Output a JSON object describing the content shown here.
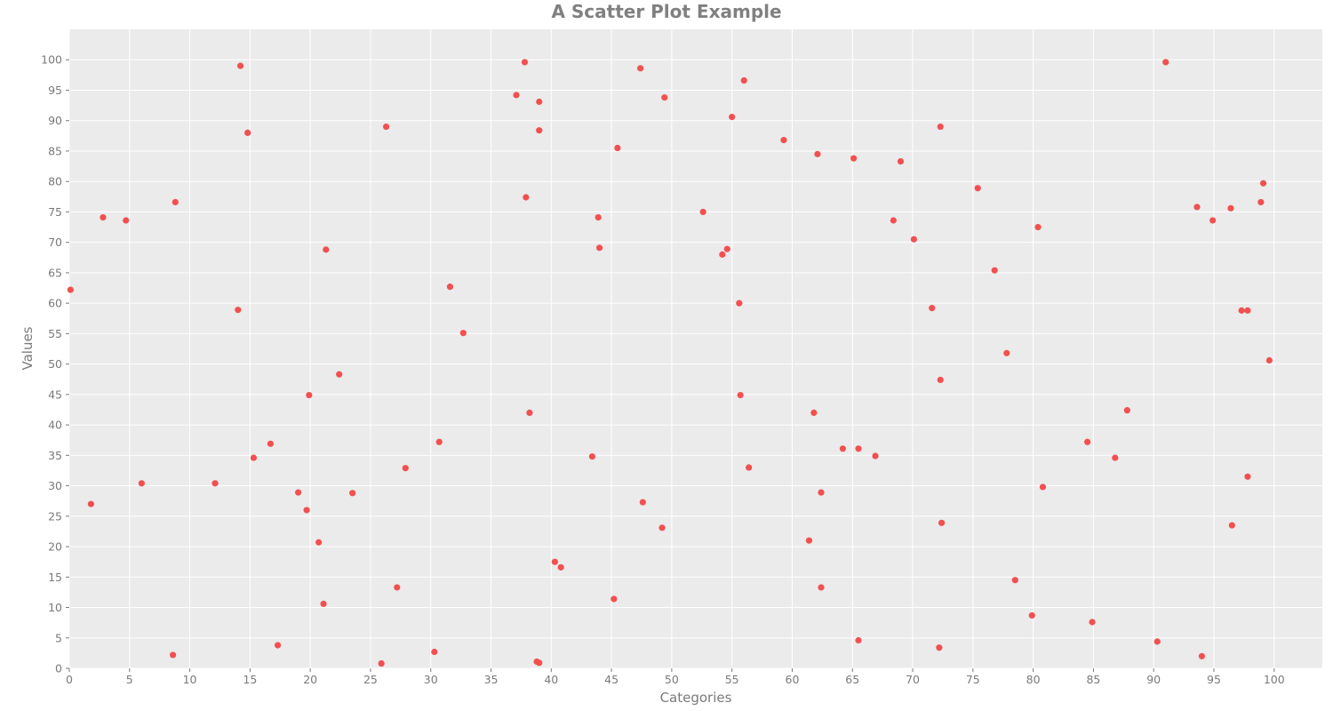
{
  "chart_data": {
    "type": "scatter",
    "title": "A Scatter Plot Example",
    "xlabel": "Categories",
    "ylabel": "Values",
    "xlim": [
      0,
      104
    ],
    "ylim": [
      0,
      105
    ],
    "xticks": [
      0,
      5,
      10,
      15,
      20,
      25,
      30,
      35,
      40,
      45,
      50,
      55,
      60,
      65,
      70,
      75,
      80,
      85,
      90,
      95,
      100
    ],
    "yticks": [
      0,
      5,
      10,
      15,
      20,
      25,
      30,
      35,
      40,
      45,
      50,
      55,
      60,
      65,
      70,
      75,
      80,
      85,
      90,
      95,
      100
    ],
    "grid": true,
    "background": "#ebebeb",
    "point_color": "#f25050",
    "series": [
      {
        "points": [
          [
            0.1,
            62.2
          ],
          [
            1.8,
            27.0
          ],
          [
            2.8,
            74.1
          ],
          [
            4.7,
            73.6
          ],
          [
            6.0,
            30.4
          ],
          [
            8.6,
            2.2
          ],
          [
            8.8,
            76.6
          ],
          [
            12.1,
            30.4
          ],
          [
            14.0,
            58.9
          ],
          [
            14.2,
            99.0
          ],
          [
            14.8,
            88.0
          ],
          [
            15.3,
            34.6
          ],
          [
            16.7,
            36.9
          ],
          [
            17.3,
            3.8
          ],
          [
            19.0,
            28.9
          ],
          [
            19.7,
            26.0
          ],
          [
            19.9,
            44.9
          ],
          [
            20.7,
            20.7
          ],
          [
            21.1,
            10.6
          ],
          [
            21.3,
            68.8
          ],
          [
            22.4,
            48.3
          ],
          [
            23.5,
            28.8
          ],
          [
            25.9,
            0.8
          ],
          [
            26.3,
            89.0
          ],
          [
            27.2,
            13.3
          ],
          [
            27.9,
            32.9
          ],
          [
            30.3,
            2.7
          ],
          [
            30.7,
            37.2
          ],
          [
            31.6,
            62.7
          ],
          [
            32.7,
            55.1
          ],
          [
            37.1,
            94.2
          ],
          [
            37.8,
            99.6
          ],
          [
            37.9,
            77.4
          ],
          [
            38.2,
            42.0
          ],
          [
            38.8,
            1.1
          ],
          [
            39.0,
            93.1
          ],
          [
            39.0,
            0.9
          ],
          [
            39.0,
            88.4
          ],
          [
            40.3,
            17.5
          ],
          [
            40.8,
            16.6
          ],
          [
            43.4,
            34.8
          ],
          [
            43.9,
            74.1
          ],
          [
            44.0,
            69.1
          ],
          [
            45.2,
            11.4
          ],
          [
            45.5,
            85.5
          ],
          [
            47.4,
            98.6
          ],
          [
            47.6,
            27.3
          ],
          [
            49.2,
            23.1
          ],
          [
            49.4,
            93.8
          ],
          [
            52.6,
            75.0
          ],
          [
            54.2,
            68.0
          ],
          [
            54.6,
            68.9
          ],
          [
            55.0,
            90.6
          ],
          [
            55.6,
            60.0
          ],
          [
            55.7,
            44.9
          ],
          [
            56.0,
            96.6
          ],
          [
            56.4,
            33.0
          ],
          [
            59.3,
            86.8
          ],
          [
            61.4,
            21.0
          ],
          [
            61.8,
            42.0
          ],
          [
            62.1,
            84.5
          ],
          [
            62.4,
            28.9
          ],
          [
            62.4,
            13.3
          ],
          [
            64.2,
            36.1
          ],
          [
            65.1,
            83.8
          ],
          [
            65.5,
            36.1
          ],
          [
            65.5,
            4.6
          ],
          [
            66.9,
            34.9
          ],
          [
            68.4,
            73.6
          ],
          [
            69.0,
            83.3
          ],
          [
            70.1,
            70.5
          ],
          [
            71.6,
            59.2
          ],
          [
            72.2,
            3.4
          ],
          [
            72.3,
            47.4
          ],
          [
            72.3,
            89.0
          ],
          [
            72.4,
            23.9
          ],
          [
            75.4,
            78.9
          ],
          [
            76.8,
            65.4
          ],
          [
            77.8,
            51.8
          ],
          [
            78.5,
            14.5
          ],
          [
            79.9,
            8.7
          ],
          [
            80.4,
            72.5
          ],
          [
            80.8,
            29.8
          ],
          [
            84.5,
            37.2
          ],
          [
            84.9,
            7.6
          ],
          [
            86.8,
            34.6
          ],
          [
            87.8,
            42.4
          ],
          [
            90.3,
            4.4
          ],
          [
            91.0,
            99.6
          ],
          [
            93.6,
            75.8
          ],
          [
            94.0,
            2.0
          ],
          [
            94.9,
            73.6
          ],
          [
            96.4,
            75.6
          ],
          [
            96.5,
            23.5
          ],
          [
            97.3,
            58.8
          ],
          [
            97.8,
            58.8
          ],
          [
            97.8,
            31.5
          ],
          [
            98.9,
            76.6
          ],
          [
            99.1,
            79.7
          ],
          [
            99.6,
            50.6
          ]
        ]
      }
    ]
  }
}
